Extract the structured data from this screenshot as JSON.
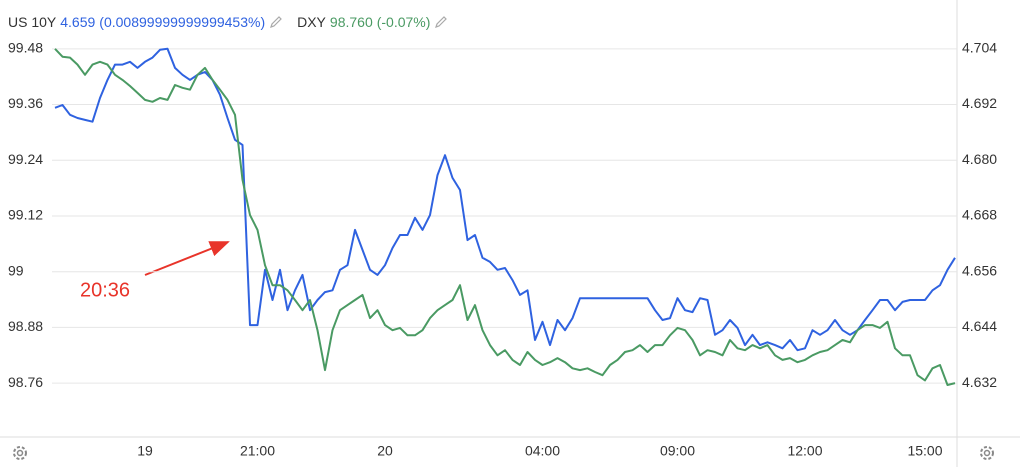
{
  "chart_data": {
    "type": "line",
    "annotation": "20:36",
    "categories": [
      null,
      null,
      null,
      null,
      null,
      null,
      null,
      null,
      null,
      null,
      null,
      null,
      "19",
      null,
      null,
      null,
      null,
      null,
      null,
      null,
      null,
      null,
      null,
      null,
      null,
      null,
      null,
      "21:00",
      null,
      null,
      null,
      null,
      null,
      null,
      null,
      null,
      null,
      null,
      null,
      null,
      null,
      null,
      null,
      null,
      "20",
      null,
      null,
      null,
      null,
      null,
      null,
      null,
      null,
      null,
      null,
      null,
      null,
      null,
      null,
      null,
      null,
      null,
      null,
      null,
      null,
      "04:00",
      null,
      null,
      null,
      null,
      null,
      null,
      null,
      null,
      null,
      null,
      null,
      null,
      null,
      null,
      null,
      null,
      null,
      "09:00",
      null,
      null,
      null,
      null,
      null,
      null,
      null,
      null,
      null,
      null,
      null,
      null,
      null,
      null,
      null,
      null,
      "12:00",
      null,
      null,
      null,
      null,
      null,
      null,
      null,
      null,
      null,
      null,
      null,
      null,
      null,
      null,
      null,
      "15:00",
      null,
      null,
      null,
      null
    ],
    "series": [
      {
        "name": "US 10Y",
        "last_label": "4.659",
        "change_label": "(0.00899999999999453%)",
        "color": "#2f62e0",
        "axis": "y2",
        "values": [
          4.6913,
          4.6919,
          4.6898,
          4.6891,
          4.6887,
          4.6883,
          4.6934,
          4.6973,
          4.7006,
          4.7006,
          4.7012,
          4.6999,
          4.7012,
          4.7021,
          4.7038,
          4.704,
          4.6999,
          4.6984,
          4.6973,
          4.6984,
          4.699,
          4.6973,
          4.6941,
          4.6891,
          4.6844,
          4.6833,
          4.6445,
          4.6445,
          4.6564,
          4.6499,
          4.6564,
          4.6477,
          4.652,
          4.6553,
          4.6477,
          4.6499,
          4.6516,
          4.652,
          4.6564,
          4.6574,
          4.665,
          4.6607,
          4.6564,
          4.6553,
          4.6574,
          4.6611,
          4.6639,
          4.6639,
          4.6676,
          4.665,
          4.6682,
          4.6768,
          4.6811,
          4.6762,
          4.6736,
          4.6628,
          4.6639,
          4.659,
          4.6581,
          4.6564,
          4.6568,
          4.6542,
          4.651,
          4.652,
          4.6413,
          4.6452,
          4.6402,
          4.6456,
          4.6434,
          4.646,
          4.6503,
          4.6503,
          4.6503,
          4.6503,
          4.6503,
          4.6503,
          4.6503,
          4.6503,
          4.6503,
          4.6503,
          4.6477,
          4.6456,
          4.646,
          4.6503,
          4.6477,
          4.6473,
          4.6503,
          4.6499,
          4.6424,
          4.6434,
          4.6456,
          4.6439,
          4.6402,
          4.6424,
          4.6402,
          4.6408,
          4.6402,
          4.6395,
          4.6413,
          4.6391,
          4.6395,
          4.6434,
          4.6424,
          4.6434,
          4.6456,
          4.6434,
          4.6424,
          4.6434,
          4.6456,
          4.6477,
          4.6499,
          4.6499,
          4.6477,
          4.6495,
          4.6499,
          4.6499,
          4.6499,
          4.652,
          4.6531,
          4.6564,
          4.659
        ]
      },
      {
        "name": "DXY",
        "last_label": "98.760",
        "change_label": "(-0.07%)",
        "color": "#4a9a63",
        "axis": "y",
        "values": [
          99.48,
          99.463,
          99.461,
          99.446,
          99.424,
          99.446,
          99.452,
          99.446,
          99.424,
          99.413,
          99.4,
          99.385,
          99.37,
          99.366,
          99.374,
          99.37,
          99.402,
          99.396,
          99.392,
          99.424,
          99.439,
          99.413,
          99.392,
          99.37,
          99.338,
          99.198,
          99.122,
          99.09,
          99.014,
          98.971,
          98.971,
          98.96,
          98.939,
          98.917,
          98.939,
          98.874,
          98.788,
          98.874,
          98.917,
          98.928,
          98.939,
          98.95,
          98.9,
          98.917,
          98.885,
          98.874,
          98.879,
          98.863,
          98.863,
          98.874,
          98.9,
          98.917,
          98.928,
          98.939,
          98.971,
          98.896,
          98.928,
          98.874,
          98.842,
          98.82,
          98.831,
          98.81,
          98.799,
          98.827,
          98.81,
          98.799,
          98.805,
          98.814,
          98.805,
          98.792,
          98.788,
          98.792,
          98.784,
          98.777,
          98.799,
          98.81,
          98.827,
          98.831,
          98.842,
          98.827,
          98.842,
          98.842,
          98.863,
          98.879,
          98.874,
          98.853,
          98.82,
          98.831,
          98.827,
          98.82,
          98.853,
          98.835,
          98.831,
          98.842,
          98.835,
          98.842,
          98.82,
          98.81,
          98.814,
          98.805,
          98.81,
          98.82,
          98.827,
          98.831,
          98.842,
          98.853,
          98.848,
          98.874,
          98.885,
          98.885,
          98.879,
          98.892,
          98.835,
          98.82,
          98.82,
          98.777,
          98.766,
          98.792,
          98.799,
          98.756,
          98.76
        ]
      }
    ],
    "ylim": [
      98.644,
      99.499
    ],
    "yticks": [
      99.48,
      99.36,
      99.24,
      99.12,
      99,
      98.88,
      98.76
    ],
    "y2lim": [
      4.6204,
      4.7059
    ],
    "y2ticks": [
      4.704,
      4.692,
      {
        "value": 4.68,
        "label": "4.680"
      },
      4.668,
      4.656,
      4.644,
      4.632
    ],
    "grid": true
  }
}
